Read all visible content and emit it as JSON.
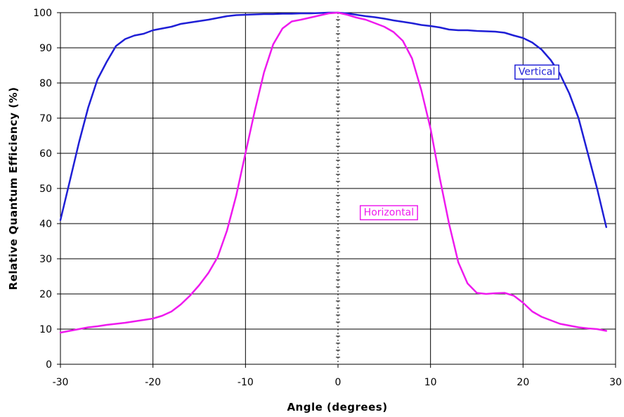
{
  "chart_data": {
    "type": "line",
    "title": "",
    "xlabel": "Angle (degrees)",
    "ylabel": "Relative Quantum Efficiency (%)",
    "xlim": [
      -30,
      30
    ],
    "ylim": [
      0,
      100
    ],
    "xticks": [
      -30,
      -20,
      -10,
      0,
      10,
      20,
      30
    ],
    "yticks": [
      0,
      10,
      20,
      30,
      40,
      50,
      60,
      70,
      80,
      90,
      100
    ],
    "grid": true,
    "legend": "inline labels",
    "series": [
      {
        "name": "Vertical",
        "color": "#1f1fd6",
        "x": [
          -30,
          -29,
          -28,
          -27,
          -26,
          -25,
          -24,
          -23,
          -22,
          -21,
          -20,
          -19,
          -18,
          -17,
          -16,
          -15,
          -14,
          -13,
          -12,
          -11,
          -10,
          -9,
          -8,
          -7,
          -6,
          -5,
          -4,
          -3,
          -2,
          -1,
          0,
          1,
          2,
          3,
          4,
          5,
          6,
          7,
          8,
          9,
          10,
          11,
          12,
          13,
          14,
          15,
          16,
          17,
          18,
          19,
          20,
          21,
          22,
          23,
          24,
          25,
          26,
          27,
          28,
          29
        ],
        "values": [
          41,
          52,
          63,
          73,
          81,
          86,
          90.5,
          92.5,
          93.5,
          94,
          95,
          95.5,
          96,
          96.8,
          97.2,
          97.6,
          98,
          98.5,
          99,
          99.3,
          99.4,
          99.5,
          99.6,
          99.6,
          99.7,
          99.7,
          99.8,
          99.8,
          99.9,
          100,
          100,
          99.8,
          99.4,
          99,
          98.7,
          98.3,
          97.8,
          97.4,
          97,
          96.5,
          96.2,
          95.8,
          95.2,
          95,
          95,
          94.8,
          94.7,
          94.6,
          94.3,
          93.5,
          92.8,
          91.5,
          89.5,
          86.5,
          82.5,
          77,
          70,
          60,
          50,
          39
        ]
      },
      {
        "name": "Horizontal",
        "color": "#ee1aee",
        "x": [
          -30,
          -29,
          -28,
          -27,
          -26,
          -25,
          -24,
          -23,
          -22,
          -21,
          -20,
          -19,
          -18,
          -17,
          -16,
          -15,
          -14,
          -13,
          -12,
          -11,
          -10,
          -9,
          -8,
          -7,
          -6,
          -5,
          -4,
          -3,
          -2,
          -1,
          0,
          1,
          2,
          3,
          4,
          5,
          6,
          7,
          8,
          9,
          10,
          11,
          12,
          13,
          14,
          15,
          16,
          17,
          18,
          19,
          20,
          21,
          22,
          23,
          24,
          25,
          26,
          27,
          28,
          29
        ],
        "values": [
          9,
          9.5,
          10,
          10.5,
          10.8,
          11.2,
          11.5,
          11.8,
          12.2,
          12.6,
          13,
          13.8,
          15,
          17,
          19.5,
          22.5,
          26,
          30.5,
          38,
          48,
          60,
          72,
          83,
          91,
          95.5,
          97.5,
          98,
          98.6,
          99.2,
          99.8,
          100,
          99.4,
          98.6,
          98,
          97,
          96,
          94.5,
          92,
          87,
          78,
          67,
          53,
          40,
          29,
          23,
          20.3,
          20,
          20.2,
          20.3,
          19.5,
          17.5,
          15,
          13.5,
          12.5,
          11.5,
          11,
          10.5,
          10.2,
          10,
          9.5
        ]
      }
    ],
    "annotations": [
      {
        "text": "Vertical",
        "series": "Vertical",
        "x": 21.5,
        "y": 83.3,
        "color": "#1f1fd6"
      },
      {
        "text": "Horizontal",
        "series": "Horizontal",
        "x": 5.5,
        "y": 43.3,
        "color": "#ee1aee"
      }
    ]
  }
}
